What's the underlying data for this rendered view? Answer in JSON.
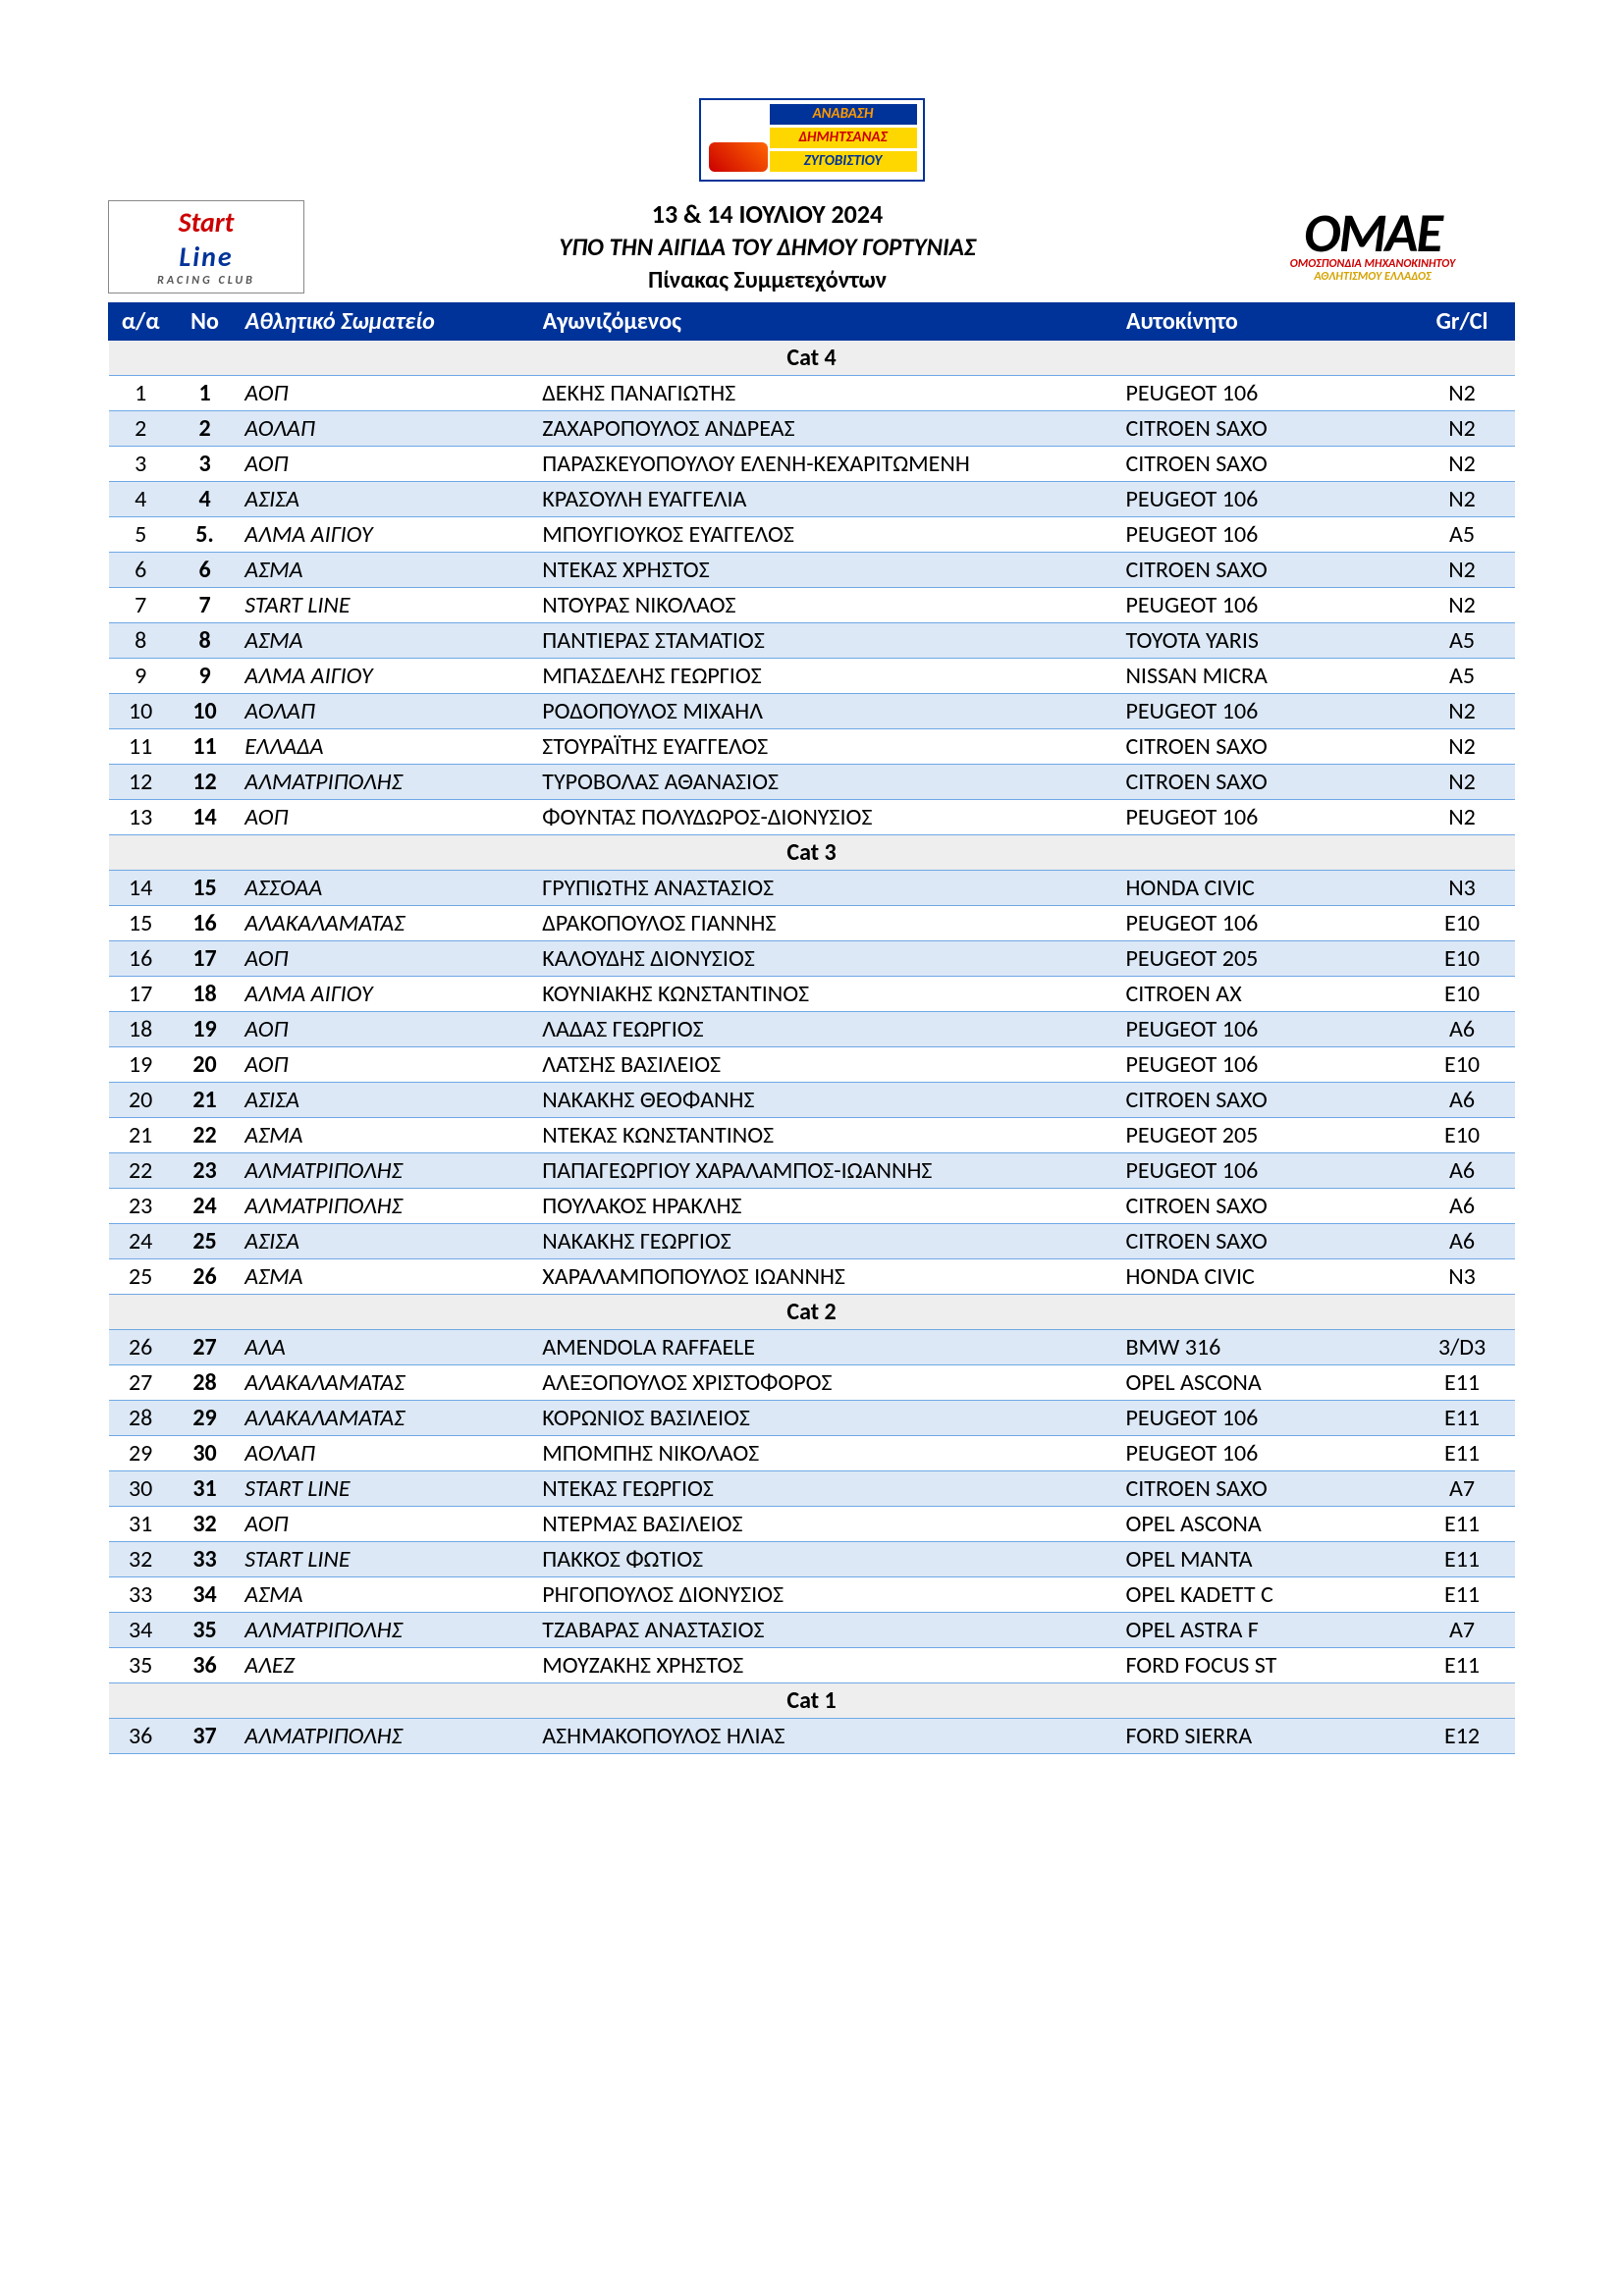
{
  "event_logo": {
    "line1": "ΑΝΑΒΑΣΗ",
    "line2": "ΔΗΜΗΤΣΑΝΑΣ",
    "line3": "ΖΥΓΟΒΙΣΤΙΟΥ"
  },
  "left_logo": {
    "l1": "Start",
    "l2": "Line",
    "l3": "RACING CLUB"
  },
  "right_logo": {
    "title": "OMAE",
    "sub1": "ΟΜΟΣΠΟΝΔΙΑ ΜΗΧΑΝΟΚΙΝΗΤΟΥ",
    "sub2": "ΑΘΛΗΤΙΣΜΟΥ ΕΛΛΑΔΟΣ"
  },
  "header_text": {
    "line1": "13 & 14 ΙΟΥΛΙΟΥ 2024",
    "line2": "ΥΠΟ ΤΗΝ ΑΙΓΙΔΑ ΤΟΥ ΔΗΜΟΥ ΓΟΡΤΥΝΙΑΣ",
    "line3": "Πίνακας Συμμετεχόντων"
  },
  "columns": {
    "aa": "α/α",
    "no": "No",
    "club": "Αθλητικό Σωματείο",
    "driver": "Αγωνιζόμενος",
    "car": "Αυτοκίνητο",
    "gr": "Gr/Cl"
  },
  "categories": [
    {
      "title": "Cat 4",
      "rows": [
        {
          "aa": "1",
          "no": "1",
          "club": "ΑΟΠ",
          "driver": "ΔΕΚΗΣ ΠΑΝΑΓΙΩΤΗΣ",
          "car": "PEUGEOT 106",
          "gr": "N2"
        },
        {
          "aa": "2",
          "no": "2",
          "club": "ΑΟΛΑΠ",
          "driver": "ΖΑΧΑΡΟΠΟΥΛΟΣ ΑΝΔΡΕΑΣ",
          "car": "CITROEN SAXO",
          "gr": "N2"
        },
        {
          "aa": "3",
          "no": "3",
          "club": "ΑΟΠ",
          "driver": "ΠΑΡΑΣΚΕΥΟΠΟΥΛΟΥ ΕΛΕΝΗ-ΚΕΧΑΡΙΤΩΜΕΝΗ",
          "car": "CITROEN SAXO",
          "gr": "N2"
        },
        {
          "aa": "4",
          "no": "4",
          "club": "ΑΣΙΣΑ",
          "driver": "ΚΡΑΣΟΥΛΗ ΕΥΑΓΓΕΛΙΑ",
          "car": "PEUGEOT 106",
          "gr": "N2"
        },
        {
          "aa": "5",
          "no": "5.",
          "club": "ΑΛΜΑ ΑΙΓΙΟΥ",
          "driver": "ΜΠΟΥΓΙΟΥΚΟΣ ΕΥΑΓΓΕΛΟΣ",
          "car": "PEUGEOT 106",
          "gr": "A5"
        },
        {
          "aa": "6",
          "no": "6",
          "club": "ΑΣΜΑ",
          "driver": "ΝΤΕΚΑΣ ΧΡΗΣΤΟΣ",
          "car": "CITROEN SAXO",
          "gr": "N2"
        },
        {
          "aa": "7",
          "no": "7",
          "club": "START LINE",
          "driver": "ΝΤΟΥΡΑΣ ΝΙΚΟΛΑΟΣ",
          "car": "PEUGEOT 106",
          "gr": "N2"
        },
        {
          "aa": "8",
          "no": "8",
          "club": "ΑΣΜΑ",
          "driver": "ΠΑΝΤΙΕΡΑΣ ΣΤΑΜΑΤΙΟΣ",
          "car": "TOYOTA YARIS",
          "gr": "A5"
        },
        {
          "aa": "9",
          "no": "9",
          "club": "ΑΛΜΑ ΑΙΓΙΟΥ",
          "driver": "ΜΠΑΣΔΕΛΗΣ ΓΕΩΡΓΙΟΣ",
          "car": "NISSAN MICRA",
          "gr": "A5"
        },
        {
          "aa": "10",
          "no": "10",
          "club": "ΑΟΛΑΠ",
          "driver": "ΡΟΔΟΠΟΥΛΟΣ ΜΙΧΑΗΛ",
          "car": "PEUGEOT 106",
          "gr": "N2"
        },
        {
          "aa": "11",
          "no": "11",
          "club": "ΕΛΛΑΔΑ",
          "driver": "ΣΤΟΥΡΑΪΤΗΣ ΕΥΑΓΓΕΛΟΣ",
          "car": "CITROEN SAXO",
          "gr": "N2"
        },
        {
          "aa": "12",
          "no": "12",
          "club": "ΑΛΜΑΤΡΙΠΟΛΗΣ",
          "driver": "ΤΥΡΟΒΟΛΑΣ ΑΘΑΝΑΣΙΟΣ",
          "car": "CITROEN SAXO",
          "gr": "N2"
        },
        {
          "aa": "13",
          "no": "14",
          "club": "ΑΟΠ",
          "driver": "ΦΟΥΝΤΑΣ ΠΟΛΥΔΩΡΟΣ-ΔΙΟΝΥΣΙΟΣ",
          "car": "PEUGEOT 106",
          "gr": "N2"
        }
      ]
    },
    {
      "title": "Cat 3",
      "rows": [
        {
          "aa": "14",
          "no": "15",
          "club": "ΑΣΣΟΑΑ",
          "driver": "ΓΡΥΠΙΩΤΗΣ ΑΝΑΣΤΑΣΙΟΣ",
          "car": "HONDA CIVIC",
          "gr": "N3"
        },
        {
          "aa": "15",
          "no": "16",
          "club": "ΑΛΑΚΑΛΑΜΑΤΑΣ",
          "driver": "ΔΡΑΚΟΠΟΥΛΟΣ ΓΙΑΝΝΗΣ",
          "car": "PEUGEOT 106",
          "gr": "E10"
        },
        {
          "aa": "16",
          "no": "17",
          "club": "ΑΟΠ",
          "driver": "ΚΑΛΟΥΔΗΣ ΔΙΟΝΥΣΙΟΣ",
          "car": "PEUGEOT 205",
          "gr": "E10"
        },
        {
          "aa": "17",
          "no": "18",
          "club": "ΑΛΜΑ ΑΙΓΙΟΥ",
          "driver": "ΚΟΥΝΙΑΚΗΣ ΚΩΝΣΤΑΝΤΙΝΟΣ",
          "car": "CITROEN AX",
          "gr": "E10"
        },
        {
          "aa": "18",
          "no": "19",
          "club": "ΑΟΠ",
          "driver": "ΛΑΔΑΣ ΓΕΩΡΓΙΟΣ",
          "car": "PEUGEOT 106",
          "gr": "A6"
        },
        {
          "aa": "19",
          "no": "20",
          "club": "ΑΟΠ",
          "driver": "ΛΑΤΣΗΣ ΒΑΣΙΛΕΙΟΣ",
          "car": "PEUGEOT 106",
          "gr": "E10"
        },
        {
          "aa": "20",
          "no": "21",
          "club": "ΑΣΙΣΑ",
          "driver": "ΝΑΚΑΚΗΣ ΘΕΟΦΑΝΗΣ",
          "car": "CITROEN SAXO",
          "gr": "A6"
        },
        {
          "aa": "21",
          "no": "22",
          "club": "ΑΣΜΑ",
          "driver": "ΝΤΕΚΑΣ ΚΩΝΣΤΑΝΤΙΝΟΣ",
          "car": "PEUGEOT 205",
          "gr": "E10"
        },
        {
          "aa": "22",
          "no": "23",
          "club": "ΑΛΜΑΤΡΙΠΟΛΗΣ",
          "driver": "ΠΑΠΑΓΕΩΡΓΙΟΥ ΧΑΡΑΛΑΜΠΟΣ-ΙΩΑΝΝΗΣ",
          "car": "PEUGEOT 106",
          "gr": "A6"
        },
        {
          "aa": "23",
          "no": "24",
          "club": "ΑΛΜΑΤΡΙΠΟΛΗΣ",
          "driver": "ΠΟΥΛΑΚΟΣ ΗΡΑΚΛΗΣ",
          "car": "CITROEN SAXO",
          "gr": "A6"
        },
        {
          "aa": "24",
          "no": "25",
          "club": "ΑΣΙΣΑ",
          "driver": "ΝΑΚΑΚΗΣ ΓΕΩΡΓΙΟΣ",
          "car": "CITROEN SAXO",
          "gr": "A6"
        },
        {
          "aa": "25",
          "no": "26",
          "club": "ΑΣΜΑ",
          "driver": "ΧΑΡΑΛΑΜΠΟΠΟΥΛΟΣ ΙΩΑΝΝΗΣ",
          "car": "HONDA CIVIC",
          "gr": "N3"
        }
      ]
    },
    {
      "title": "Cat 2",
      "rows": [
        {
          "aa": "26",
          "no": "27",
          "club": "ΑΛΑ",
          "driver": "AMENDOLA RAFFAELE",
          "car": "BMW 316",
          "gr": "3/D3"
        },
        {
          "aa": "27",
          "no": "28",
          "club": "ΑΛΑΚΑΛΑΜΑΤΑΣ",
          "driver": "ΑΛΕΞΟΠΟΥΛΟΣ ΧΡΙΣΤΟΦΟΡΟΣ",
          "car": "OPEL ASCONA",
          "gr": "E11"
        },
        {
          "aa": "28",
          "no": "29",
          "club": "ΑΛΑΚΑΛΑΜΑΤΑΣ",
          "driver": "ΚΟΡΩΝΙΟΣ ΒΑΣΙΛΕΙΟΣ",
          "car": "PEUGEOT 106",
          "gr": "E11"
        },
        {
          "aa": "29",
          "no": "30",
          "club": "ΑΟΛΑΠ",
          "driver": "ΜΠΟΜΠΗΣ ΝΙΚΟΛΑΟΣ",
          "car": "PEUGEOT 106",
          "gr": "E11"
        },
        {
          "aa": "30",
          "no": "31",
          "club": "START LINE",
          "driver": "ΝΤΕΚΑΣ ΓΕΩΡΓΙΟΣ",
          "car": "CITROEN SAXO",
          "gr": "A7"
        },
        {
          "aa": "31",
          "no": "32",
          "club": "ΑΟΠ",
          "driver": "ΝΤΕΡΜΑΣ ΒΑΣΙΛΕΙΟΣ",
          "car": "OPEL ASCONA",
          "gr": "E11"
        },
        {
          "aa": "32",
          "no": "33",
          "club": "START LINE",
          "driver": "ΠΑΚΚΟΣ ΦΩΤΙΟΣ",
          "car": "OPEL MANTA",
          "gr": "E11"
        },
        {
          "aa": "33",
          "no": "34",
          "club": "ΑΣΜΑ",
          "driver": "ΡΗΓΟΠΟΥΛΟΣ ΔΙΟΝΥΣΙΟΣ",
          "car": "OPEL KADETT C",
          "gr": "E11"
        },
        {
          "aa": "34",
          "no": "35",
          "club": "ΑΛΜΑΤΡΙΠΟΛΗΣ",
          "driver": "ΤΖΑΒΑΡΑΣ ΑΝΑΣΤΑΣΙΟΣ",
          "car": "OPEL ASTRA F",
          "gr": "A7"
        },
        {
          "aa": "35",
          "no": "36",
          "club": "ΑΛΕΖ",
          "driver": "ΜΟΥΖΑΚΗΣ ΧΡΗΣΤΟΣ",
          "car": "FORD FOCUS ST",
          "gr": "E11"
        }
      ]
    },
    {
      "title": "Cat 1",
      "rows": [
        {
          "aa": "36",
          "no": "37",
          "club": "ΑΛΜΑΤΡΙΠΟΛΗΣ",
          "driver": "ΑΣΗΜΑΚΟΠΟΥΛΟΣ ΗΛΙΑΣ",
          "car": "FORD SIERRA",
          "gr": "E12"
        }
      ]
    }
  ],
  "style": {
    "header_bg": "#003399",
    "header_fg": "#ffffff",
    "row_even_bg": "#dce8f6",
    "row_border": "#6ea8e6",
    "cat_bg": "#eeeeee",
    "body_fontsize": 24
  }
}
